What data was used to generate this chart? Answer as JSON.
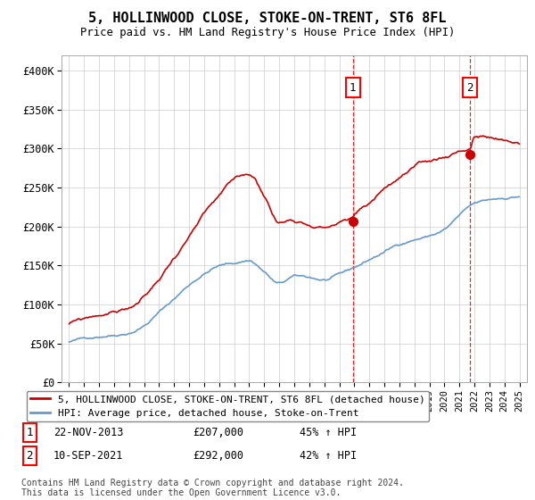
{
  "title": "5, HOLLINWOOD CLOSE, STOKE-ON-TRENT, ST6 8FL",
  "subtitle": "Price paid vs. HM Land Registry's House Price Index (HPI)",
  "xlim": [
    1994.5,
    2025.5
  ],
  "ylim": [
    0,
    420000
  ],
  "yticks": [
    0,
    50000,
    100000,
    150000,
    200000,
    250000,
    300000,
    350000,
    400000
  ],
  "ytick_labels": [
    "£0",
    "£50K",
    "£100K",
    "£150K",
    "£200K",
    "£250K",
    "£300K",
    "£350K",
    "£400K"
  ],
  "purchase1_x": 2013.9,
  "purchase1_y": 207000,
  "purchase1_label": "1",
  "purchase2_x": 2021.7,
  "purchase2_y": 292000,
  "purchase2_label": "2",
  "hpi_color": "#6699cc",
  "price_color": "#cc0000",
  "vline_color": "#dd0000",
  "legend_price_label": "5, HOLLINWOOD CLOSE, STOKE-ON-TRENT, ST6 8FL (detached house)",
  "legend_hpi_label": "HPI: Average price, detached house, Stoke-on-Trent",
  "ann1_label": "1",
  "ann1_date": "22-NOV-2013",
  "ann1_price": "£207,000",
  "ann1_hpi": "45% ↑ HPI",
  "ann2_label": "2",
  "ann2_date": "10-SEP-2021",
  "ann2_price": "£292,000",
  "ann2_hpi": "42% ↑ HPI",
  "footnote": "Contains HM Land Registry data © Crown copyright and database right 2024.\nThis data is licensed under the Open Government Licence v3.0."
}
